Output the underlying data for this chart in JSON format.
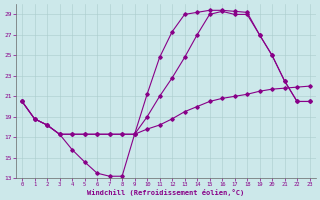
{
  "xlabel": "Windchill (Refroidissement éolien,°C)",
  "xlim": [
    -0.5,
    23.5
  ],
  "ylim": [
    13,
    30
  ],
  "yticks": [
    13,
    15,
    17,
    19,
    21,
    23,
    25,
    27,
    29
  ],
  "xticks": [
    0,
    1,
    2,
    3,
    4,
    5,
    6,
    7,
    8,
    9,
    10,
    11,
    12,
    13,
    14,
    15,
    16,
    17,
    18,
    19,
    20,
    21,
    22,
    23
  ],
  "bg_color": "#cce8ea",
  "line_color": "#880088",
  "grid_color": "#aacccc",
  "line1_x": [
    0,
    1,
    2,
    3,
    4,
    5,
    6,
    7,
    8,
    9,
    10,
    11,
    12,
    13,
    14,
    15,
    16,
    17,
    18,
    19,
    20,
    21,
    22,
    23
  ],
  "line1_y": [
    20.5,
    18.8,
    18.2,
    17.3,
    15.8,
    14.6,
    13.5,
    13.2,
    13.2,
    17.3,
    21.2,
    24.8,
    27.3,
    29.0,
    29.2,
    29.4,
    29.4,
    29.3,
    29.2,
    27.0,
    25.0,
    22.5,
    20.5,
    20.5
  ],
  "line2_x": [
    0,
    1,
    2,
    3,
    4,
    5,
    6,
    7,
    8,
    9,
    10,
    11,
    12,
    13,
    14,
    15,
    16,
    17,
    18,
    19,
    20,
    21,
    22,
    23
  ],
  "line2_y": [
    20.5,
    18.8,
    18.2,
    17.3,
    17.3,
    17.3,
    17.3,
    17.3,
    17.3,
    17.3,
    17.8,
    18.2,
    18.8,
    19.5,
    20.0,
    20.5,
    20.8,
    21.0,
    21.2,
    21.5,
    21.7,
    21.8,
    21.9,
    22.0
  ],
  "line3_x": [
    0,
    1,
    2,
    3,
    4,
    5,
    6,
    7,
    8,
    9,
    10,
    11,
    12,
    13,
    14,
    15,
    16,
    17,
    18,
    19,
    20,
    21,
    22,
    23
  ],
  "line3_y": [
    20.5,
    18.8,
    18.2,
    17.3,
    17.3,
    17.3,
    17.3,
    17.3,
    17.3,
    17.3,
    19.0,
    21.0,
    22.8,
    24.8,
    27.0,
    29.0,
    29.3,
    29.0,
    29.0,
    27.0,
    25.0,
    22.5,
    20.5,
    20.5
  ]
}
